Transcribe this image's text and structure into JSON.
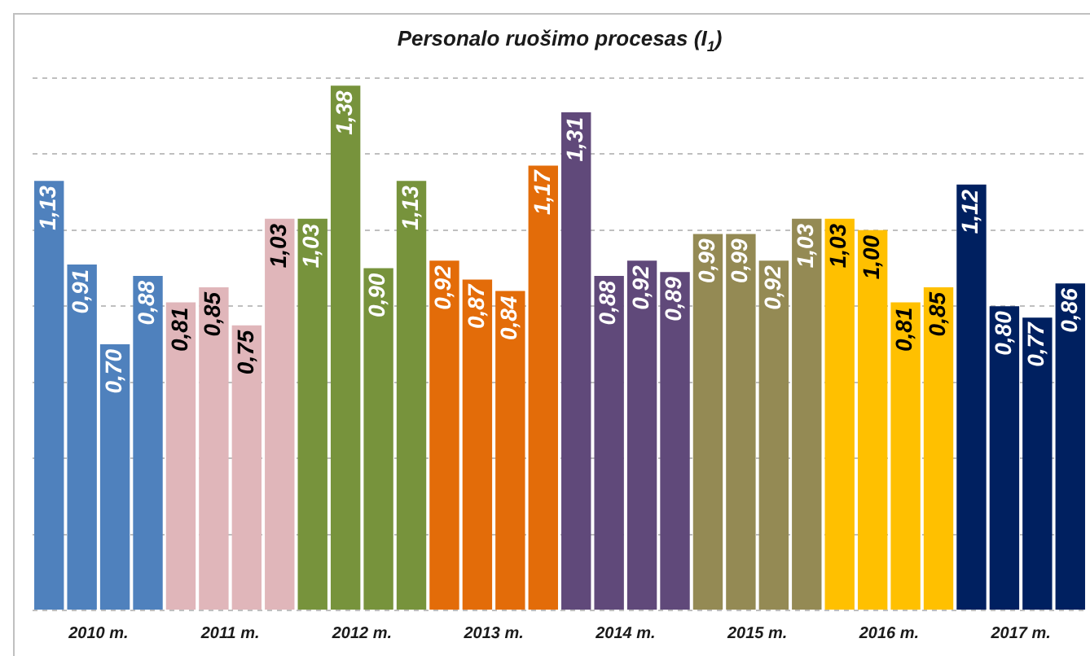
{
  "chart_data": {
    "type": "bar",
    "title": "Personalo ruošimo procesas (I$_{1}$)",
    "categories": [
      "2010 m.",
      "2011 m.",
      "2012 m.",
      "2013 m.",
      "2014 m.",
      "2015 m.",
      "2016 m.",
      "2017 m."
    ],
    "series": [
      {
        "values": [
          1.13,
          0.81,
          1.03,
          0.92,
          1.31,
          0.99,
          1.03,
          1.12
        ],
        "value_labels": [
          "1,13",
          "0,81",
          "1,03",
          "0,92",
          "1,31",
          "0,99",
          "1,03",
          "1,12"
        ],
        "colors": [
          "#4f81bd",
          "#e0b6ba",
          "#77933c",
          "#e36c09",
          "#60497a",
          "#948a54",
          "#ffc000",
          "#002060"
        ]
      },
      {
        "values": [
          0.91,
          0.85,
          1.38,
          0.87,
          0.88,
          0.99,
          1.0,
          0.8
        ],
        "value_labels": [
          "0,91",
          "0,85",
          "1,38",
          "0,87",
          "0,88",
          "0,99",
          "1,00",
          "0,80"
        ],
        "colors": [
          "#4f81bd",
          "#e0b6ba",
          "#77933c",
          "#e36c09",
          "#60497a",
          "#948a54",
          "#ffc000",
          "#002060"
        ]
      },
      {
        "values": [
          0.7,
          0.75,
          0.9,
          0.84,
          0.92,
          0.92,
          0.81,
          0.77
        ],
        "value_labels": [
          "0,70",
          "0,75",
          "0,90",
          "0,84",
          "0,92",
          "0,92",
          "0,81",
          "0,77"
        ],
        "colors": [
          "#4f81bd",
          "#e0b6ba",
          "#77933c",
          "#e36c09",
          "#60497a",
          "#948a54",
          "#ffc000",
          "#002060"
        ]
      },
      {
        "values": [
          0.88,
          1.03,
          1.13,
          1.17,
          0.89,
          1.03,
          0.85,
          0.86
        ],
        "value_labels": [
          "0,88",
          "1,03",
          "1,13",
          "1,17",
          "0,89",
          "1,03",
          "0,85",
          "0,86"
        ],
        "colors": [
          "#4f81bd",
          "#e0b6ba",
          "#77933c",
          "#e36c09",
          "#60497a",
          "#948a54",
          "#ffc000",
          "#002060"
        ]
      }
    ],
    "ylim": [
      0,
      1.4
    ],
    "yticks": [
      {
        "value": 0,
        "label": null
      },
      {
        "value": 0.2,
        "label": null
      },
      {
        "value": 0.4,
        "label": null
      },
      {
        "value": 0.6,
        "label": null
      },
      {
        "value": 0.8,
        "label": null
      },
      {
        "value": 1.0,
        "label": null
      },
      {
        "value": 1.2,
        "label": null
      },
      {
        "value": 1.4,
        "label": null
      }
    ],
    "grid": "y",
    "tick_labels": "x"
  }
}
